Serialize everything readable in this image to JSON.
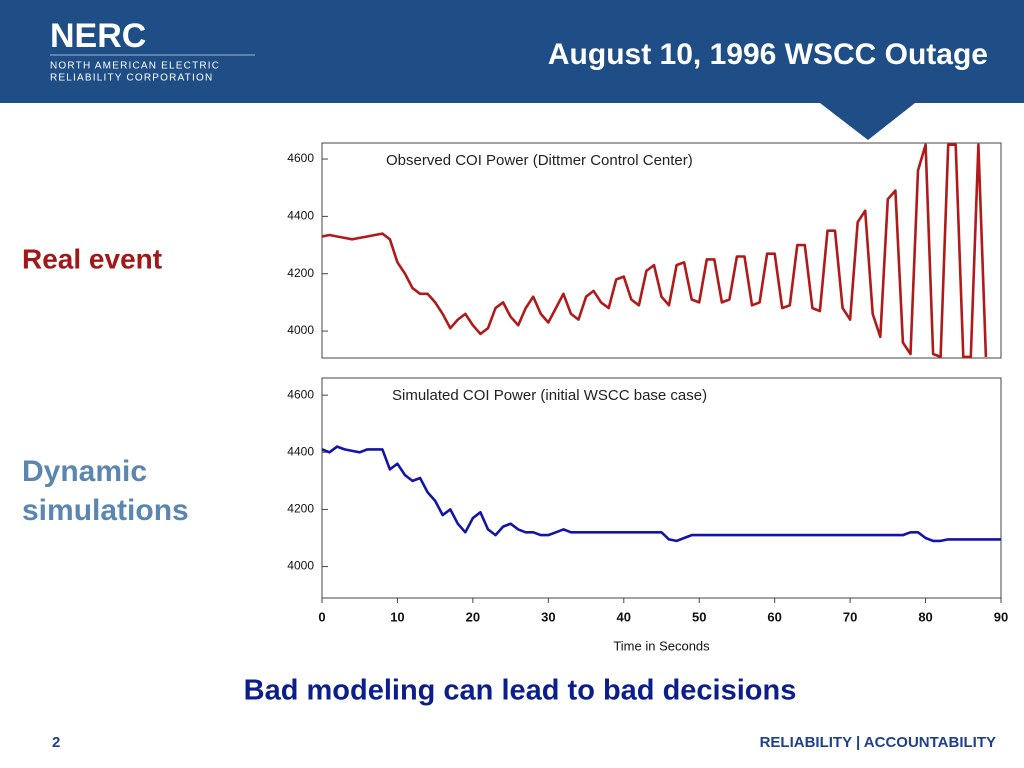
{
  "header": {
    "logo": "NERC",
    "logo_line1": "NORTH AMERICAN ELECTRIC",
    "logo_line2": "RELIABILITY CORPORATION",
    "title": "August 10, 1996 WSCC Outage"
  },
  "labels": {
    "real": "Real event",
    "dynamic": "Dynamic simulations"
  },
  "conclusion": "Bad modeling can lead to bad decisions",
  "footer": {
    "page": "2",
    "tagline": "RELIABILITY | ACCOUNTABILITY"
  },
  "chart_data": [
    {
      "type": "line",
      "title": "Observed COI Power (Dittmer Control Center)",
      "x": [
        0,
        1,
        2,
        3,
        4,
        5,
        6,
        7,
        8,
        9,
        10,
        11,
        12,
        13,
        14,
        15,
        16,
        17,
        18,
        19,
        20,
        21,
        22,
        23,
        24,
        25,
        26,
        27,
        28,
        29,
        30,
        31,
        32,
        33,
        34,
        35,
        36,
        37,
        38,
        39,
        40,
        41,
        42,
        43,
        44,
        45,
        46,
        47,
        48,
        49,
        50,
        51,
        52,
        53,
        54,
        55,
        56,
        57,
        58,
        59,
        60,
        61,
        62,
        63,
        64,
        65,
        66,
        67,
        68,
        69,
        70,
        71,
        72,
        73,
        74,
        75,
        76,
        77,
        78,
        79,
        80,
        81,
        82,
        83,
        84,
        85,
        86,
        87,
        88
      ],
      "series": [
        {
          "name": "Observed COI Power",
          "color": "#b01a1a",
          "values": [
            4330,
            4335,
            4330,
            4325,
            4320,
            4325,
            4330,
            4335,
            4340,
            4320,
            4240,
            4200,
            4150,
            4130,
            4130,
            4100,
            4060,
            4010,
            4040,
            4060,
            4020,
            3990,
            4010,
            4080,
            4100,
            4050,
            4020,
            4080,
            4120,
            4060,
            4030,
            4080,
            4130,
            4060,
            4040,
            4120,
            4140,
            4100,
            4080,
            4180,
            4190,
            4110,
            4090,
            4210,
            4230,
            4120,
            4090,
            4230,
            4240,
            4110,
            4100,
            4250,
            4250,
            4100,
            4110,
            4260,
            4260,
            4090,
            4100,
            4270,
            4270,
            4080,
            4090,
            4300,
            4300,
            4080,
            4070,
            4350,
            4350,
            4080,
            4040,
            4380,
            4420,
            4060,
            3980,
            4460,
            4490,
            3960,
            3920,
            4560,
            4650,
            3920,
            3910,
            4650,
            4650,
            3910,
            3910,
            4650,
            3910
          ]
        }
      ],
      "xlim": [
        0,
        90
      ],
      "ylim": [
        3906,
        4656
      ],
      "yticks": [
        4000,
        4200,
        4400,
        4600
      ]
    },
    {
      "type": "line",
      "title": "Simulated COI Power (initial WSCC base case)",
      "xlabel": "Time in Seconds",
      "x": [
        0,
        1,
        2,
        3,
        4,
        5,
        6,
        7,
        8,
        9,
        10,
        11,
        12,
        13,
        14,
        15,
        16,
        17,
        18,
        19,
        20,
        21,
        22,
        23,
        24,
        25,
        26,
        27,
        28,
        29,
        30,
        31,
        32,
        33,
        34,
        35,
        36,
        37,
        38,
        39,
        40,
        41,
        42,
        43,
        44,
        45,
        46,
        47,
        48,
        49,
        50,
        51,
        52,
        53,
        54,
        55,
        56,
        57,
        58,
        59,
        60,
        61,
        62,
        63,
        64,
        65,
        66,
        67,
        68,
        69,
        70,
        71,
        72,
        73,
        74,
        75,
        76,
        77,
        78,
        79,
        80,
        81,
        82,
        83,
        84,
        85,
        86,
        87,
        88,
        89,
        90
      ],
      "series": [
        {
          "name": "Simulated COI Power",
          "color": "#1414a8",
          "values": [
            4410,
            4400,
            4420,
            4410,
            4405,
            4400,
            4410,
            4410,
            4410,
            4340,
            4360,
            4320,
            4300,
            4310,
            4260,
            4230,
            4180,
            4200,
            4150,
            4120,
            4170,
            4190,
            4130,
            4110,
            4140,
            4150,
            4130,
            4120,
            4120,
            4110,
            4110,
            4120,
            4130,
            4120,
            4120,
            4120,
            4120,
            4120,
            4120,
            4120,
            4120,
            4120,
            4120,
            4120,
            4120,
            4120,
            4095,
            4090,
            4100,
            4110,
            4110,
            4110,
            4110,
            4110,
            4110,
            4110,
            4110,
            4110,
            4110,
            4110,
            4110,
            4110,
            4110,
            4110,
            4110,
            4110,
            4110,
            4110,
            4110,
            4110,
            4110,
            4110,
            4110,
            4110,
            4110,
            4110,
            4110,
            4110,
            4120,
            4120,
            4100,
            4090,
            4090,
            4095,
            4095,
            4095,
            4095,
            4095,
            4095,
            4095,
            4095
          ]
        }
      ],
      "xlim": [
        0,
        90
      ],
      "ylim": [
        3890,
        4660
      ],
      "yticks": [
        4000,
        4200,
        4400,
        4600
      ],
      "xticks": [
        0,
        10,
        20,
        30,
        40,
        50,
        60,
        70,
        80,
        90
      ]
    }
  ]
}
